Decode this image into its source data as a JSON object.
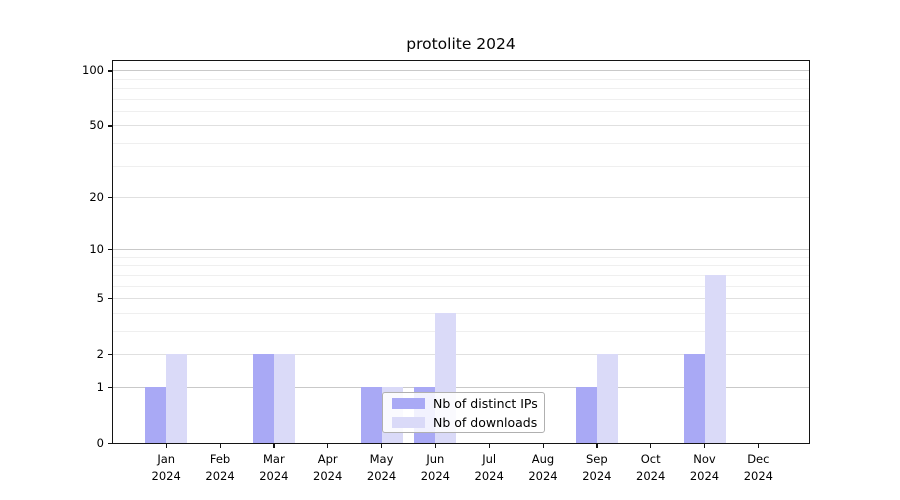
{
  "chart_data": {
    "type": "bar",
    "title": "protolite 2024",
    "categories": [
      "Jan",
      "Feb",
      "Mar",
      "Apr",
      "May",
      "Jun",
      "Jul",
      "Aug",
      "Sep",
      "Oct",
      "Nov",
      "Dec"
    ],
    "year_label": "2024",
    "series": [
      {
        "name": "Nb of distinct IPs",
        "color": "#a9a9f5",
        "values": [
          1,
          0,
          2,
          0,
          1,
          1,
          0,
          0,
          1,
          0,
          2,
          0
        ]
      },
      {
        "name": "Nb of downloads",
        "color": "#dadaf8",
        "values": [
          2,
          0,
          2,
          0,
          1,
          4,
          0,
          0,
          2,
          0,
          7,
          0
        ]
      }
    ],
    "yscale": "log1p",
    "ymax": 113,
    "ytick_values": [
      0,
      1,
      2,
      5,
      10,
      20,
      50,
      100
    ],
    "ytick_labels": [
      "0",
      "1",
      "2",
      "5",
      "10",
      "20",
      "50",
      "100"
    ],
    "grid_major": [
      1,
      10,
      100
    ],
    "grid_mid": [
      2,
      5,
      20,
      50
    ],
    "grid_minor": [
      3,
      4,
      6,
      7,
      8,
      9,
      30,
      40,
      60,
      70,
      80,
      90
    ],
    "legend_position": "inside-bottom-center",
    "xlabel": "",
    "ylabel": ""
  },
  "colors": {
    "background": "#ffffff",
    "spine": "#141414",
    "grid_major": "#c9c9c9",
    "grid_mid": "#e0e0e0",
    "grid_minor": "#efefef",
    "title_text": "#050505"
  }
}
